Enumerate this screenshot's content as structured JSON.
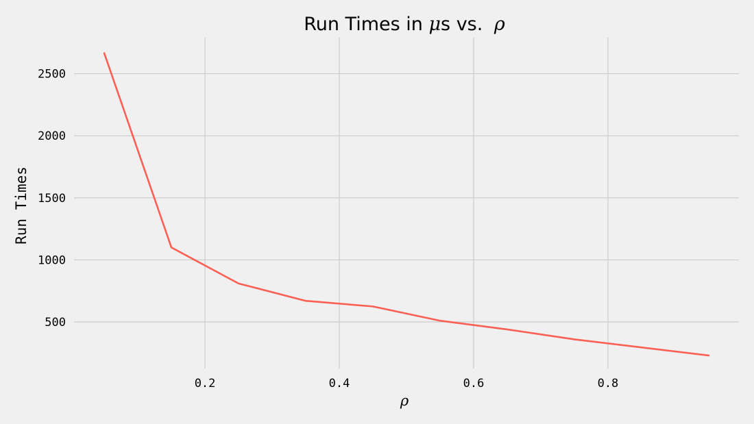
{
  "chart_data": {
    "type": "line",
    "title": "Run Times in μs vs. ρ",
    "title_parts": {
      "prefix": "Run Times in ",
      "mu": "μ",
      "unit": "s",
      "mid": " vs. ",
      "rho": "ρ"
    },
    "xlabel": "ρ",
    "ylabel": "Run Times",
    "x": [
      0.05,
      0.15,
      0.25,
      0.35,
      0.45,
      0.55,
      0.65,
      0.75,
      0.85,
      0.95
    ],
    "series": [
      {
        "values": [
          2665,
          1100,
          810,
          670,
          625,
          510,
          440,
          360,
          295,
          230
        ],
        "color": "#fc5f54"
      }
    ],
    "xlim": [
      0.005,
      0.995
    ],
    "ylim": [
      125,
      2790
    ],
    "xticks": [
      0.2,
      0.4,
      0.6,
      0.8
    ],
    "xtick_labels": [
      "0.2",
      "0.4",
      "0.6",
      "0.8"
    ],
    "yticks": [
      500,
      1000,
      1500,
      2000,
      2500
    ],
    "ytick_labels": [
      "500",
      "1000",
      "1500",
      "2000",
      "2500"
    ],
    "grid": true,
    "background": "#f0f0f0",
    "grid_color": "#cbcbcb"
  }
}
